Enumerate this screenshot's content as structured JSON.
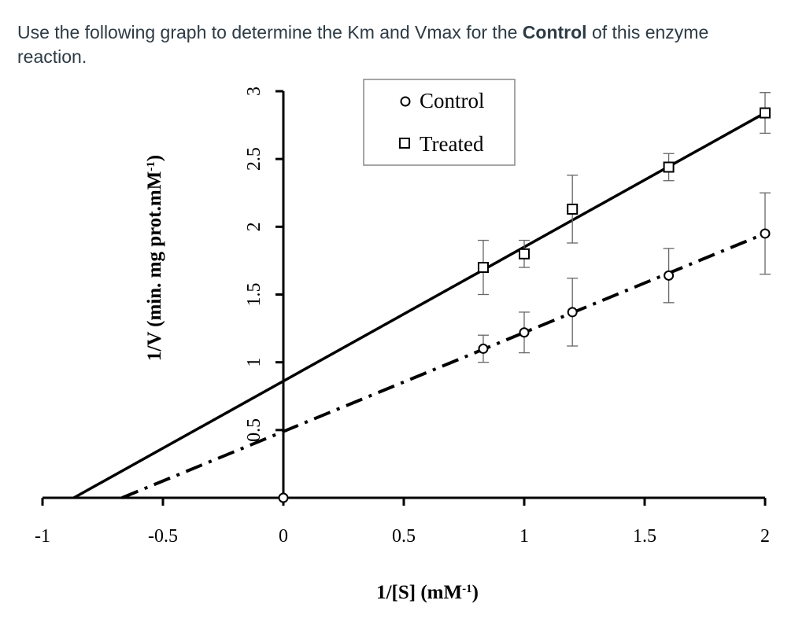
{
  "question": {
    "before": "Use the following graph to determine the Km and Vmax for the ",
    "bold": "Control",
    "after": " of this enzyme reaction."
  },
  "chart_data": {
    "type": "scatter",
    "title": "",
    "xlabel": "1/[S] (mM",
    "xlabel_sup": "-1",
    "xlabel_close": ")",
    "ylabel": "1/V (min. mg prot.mM",
    "ylabel_sup": "-1",
    "ylabel_close": ")",
    "xlim": [
      -1,
      2
    ],
    "ylim": [
      0,
      3
    ],
    "x_ticks": [
      -1,
      -0.5,
      0,
      0.5,
      1,
      1.5,
      2
    ],
    "x_tick_labels": [
      "-1",
      "-0.5",
      "0",
      "0.5",
      "1",
      "1.5",
      "2"
    ],
    "y_ticks": [
      0.5,
      1,
      1.5,
      2,
      2.5,
      3
    ],
    "y_tick_labels": [
      "0.5",
      "1",
      "1.5",
      "2",
      "2.5",
      "3"
    ],
    "grid": false,
    "legend_position": "top-center",
    "series": [
      {
        "name": "Control",
        "marker": "circle",
        "line_style": "dash-dot",
        "x": [
          0,
          0.83,
          1,
          1.2,
          1.6,
          2
        ],
        "y": [
          0,
          1.1,
          1.22,
          1.37,
          1.64,
          1.95
        ],
        "err": [
          0,
          0.1,
          0.15,
          0.25,
          0.2,
          0.3
        ],
        "fit": {
          "x": [
            -0.67,
            2
          ],
          "y": [
            0,
            1.95
          ]
        }
      },
      {
        "name": "Treated",
        "marker": "square",
        "line_style": "solid",
        "x": [
          0.83,
          1,
          1.2,
          1.6,
          2
        ],
        "y": [
          1.7,
          1.8,
          2.13,
          2.44,
          2.84
        ],
        "err": [
          0.2,
          0.1,
          0.25,
          0.1,
          0.15
        ],
        "fit": {
          "x": [
            -0.87,
            2
          ],
          "y": [
            0,
            2.84
          ]
        }
      }
    ]
  }
}
